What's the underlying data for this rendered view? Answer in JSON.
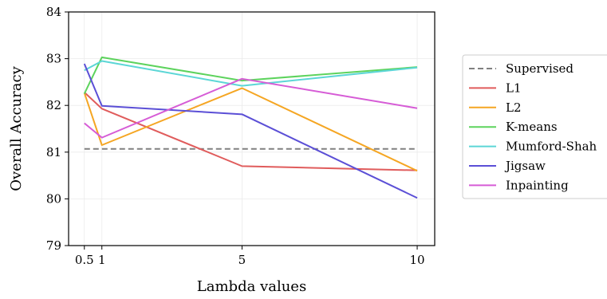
{
  "chart_data": {
    "type": "line",
    "title": "",
    "xlabel": "Lambda values",
    "ylabel": "Overall Accuracy",
    "x": [
      0.5,
      1,
      5,
      10
    ],
    "x_tick_labels": [
      "0.5",
      "1",
      "5",
      "10"
    ],
    "xlim": [
      0.05,
      10.5
    ],
    "ylim": [
      79,
      84
    ],
    "y_ticks": [
      79,
      80,
      81,
      82,
      83,
      84
    ],
    "grid": true,
    "legend_position": "outside-right",
    "series": [
      {
        "name": "Supervised",
        "color": "#808080",
        "dashed": true,
        "values": [
          81.07,
          81.07,
          81.07,
          81.07
        ]
      },
      {
        "name": "L1",
        "color": "#e05c5c",
        "dashed": false,
        "values": [
          82.28,
          81.93,
          80.7,
          80.61
        ]
      },
      {
        "name": "L2",
        "color": "#f5a623",
        "dashed": false,
        "values": [
          82.27,
          81.15,
          82.37,
          80.6
        ]
      },
      {
        "name": "K-means",
        "color": "#5dd35d",
        "dashed": false,
        "values": [
          82.25,
          83.03,
          82.53,
          82.82
        ]
      },
      {
        "name": "Mumford-Shah",
        "color": "#5cd6d6",
        "dashed": false,
        "values": [
          82.75,
          82.95,
          82.42,
          82.81
        ]
      },
      {
        "name": "Jigsaw",
        "color": "#5b4fd6",
        "dashed": false,
        "values": [
          82.89,
          81.99,
          81.81,
          80.02
        ]
      },
      {
        "name": "Inpainting",
        "color": "#d65cd6",
        "dashed": false,
        "values": [
          81.62,
          81.31,
          82.57,
          81.94
        ]
      }
    ]
  }
}
